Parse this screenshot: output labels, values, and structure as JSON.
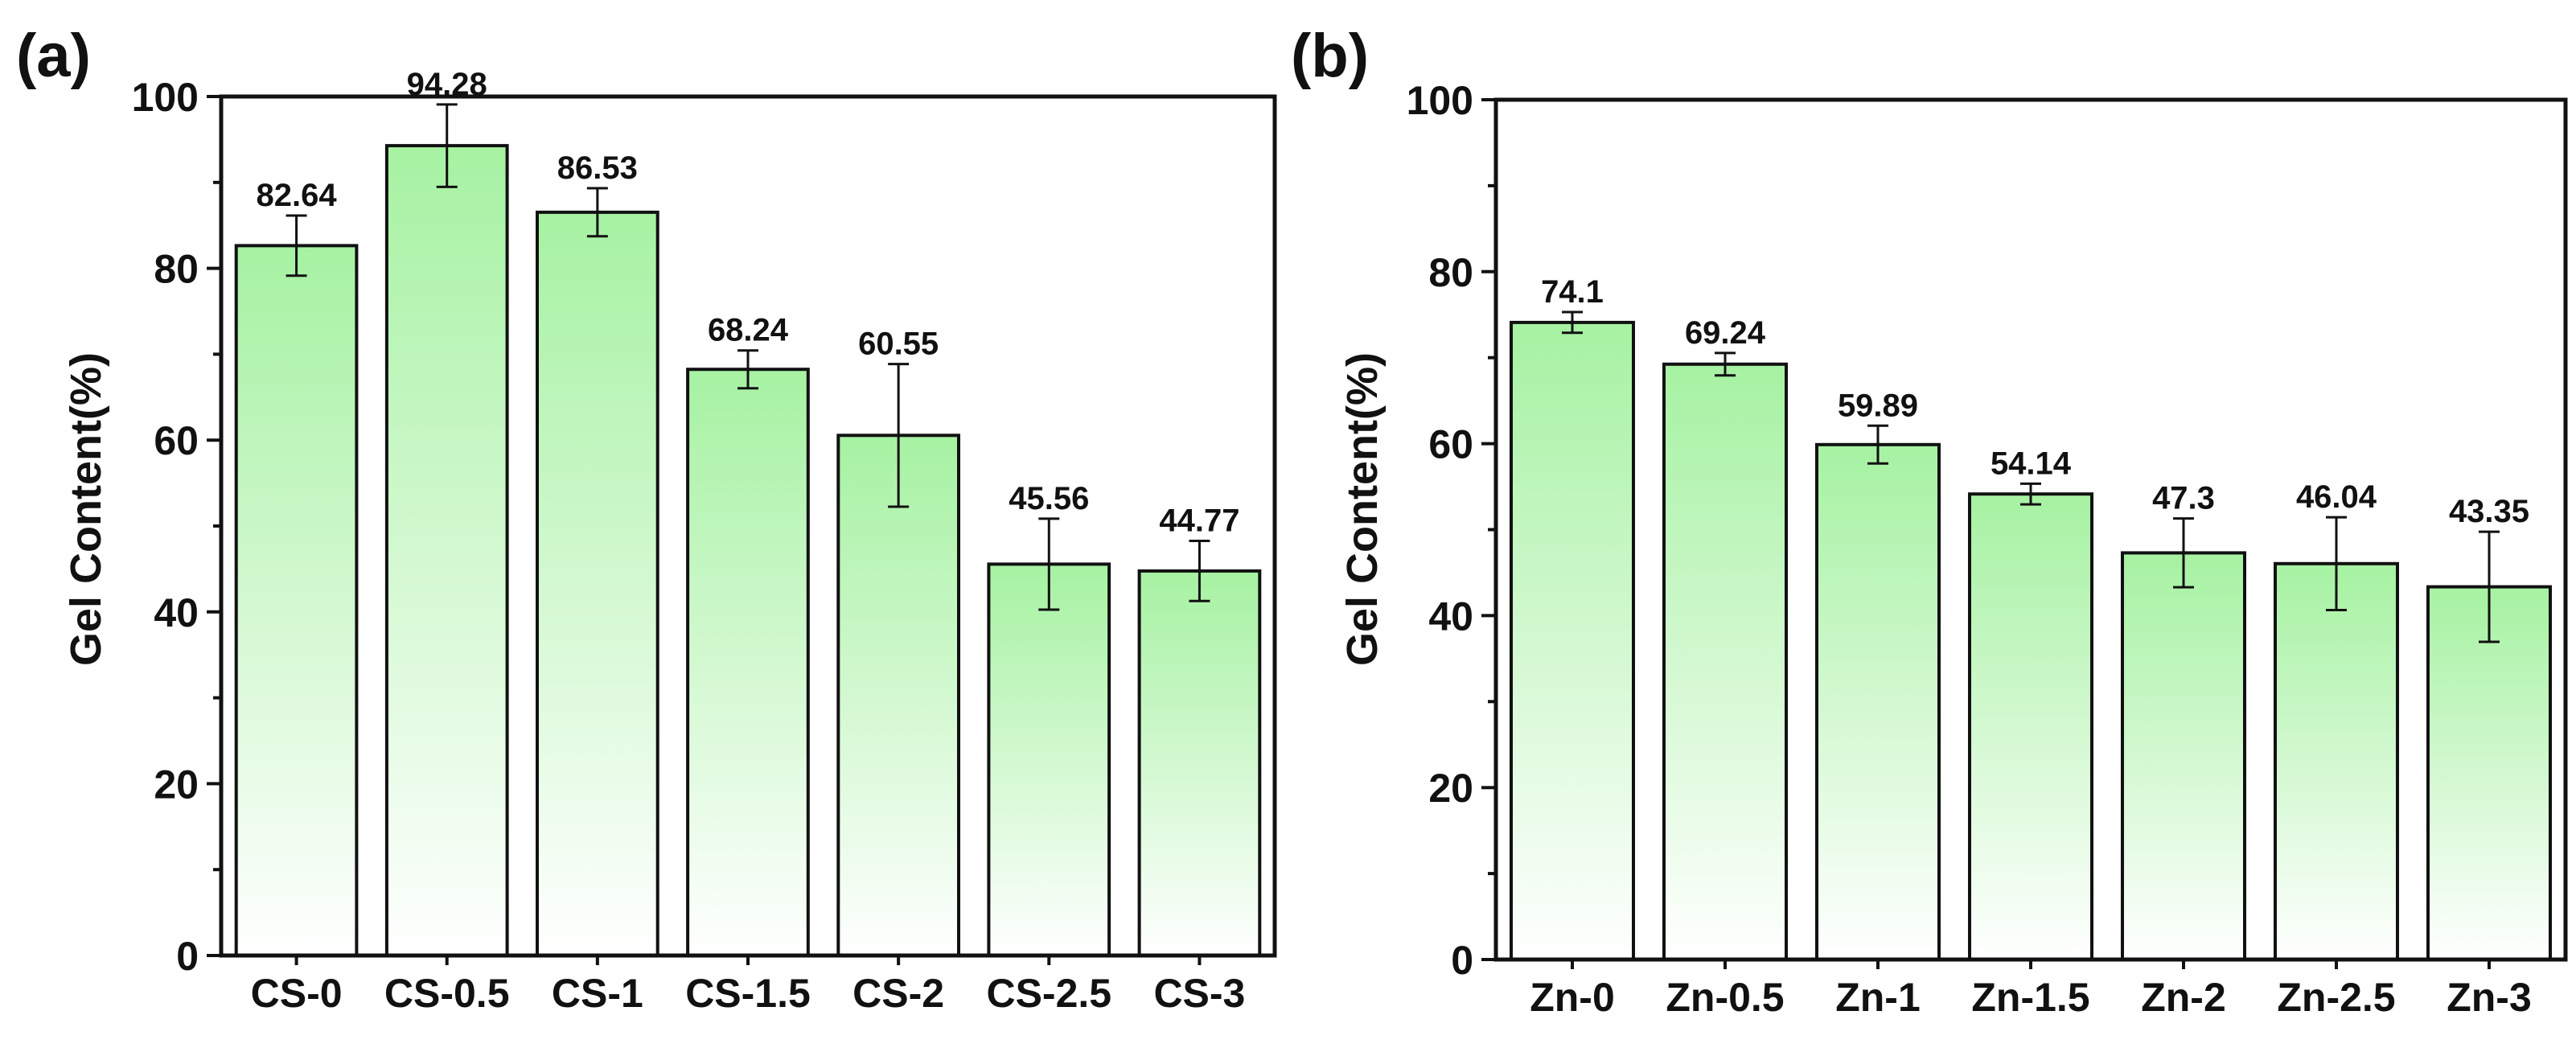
{
  "figure": {
    "bar_color_top": "#a6f2a2",
    "bar_color_bottom": "#ffffff",
    "bar_stroke": "#111111"
  },
  "chart_data": [
    {
      "type": "bar",
      "panel_label": "(a)",
      "title": "",
      "xlabel": "",
      "ylabel": "Gel Content(%)",
      "ylim": [
        0,
        100
      ],
      "yticks": [
        0,
        20,
        40,
        60,
        80,
        100
      ],
      "categories": [
        "CS-0",
        "CS-0.5",
        "CS-1",
        "CS-1.5",
        "CS-2",
        "CS-2.5",
        "CS-3"
      ],
      "values": [
        82.64,
        94.28,
        86.53,
        68.24,
        60.55,
        45.56,
        44.77
      ],
      "value_labels": [
        "82.64",
        "94.28",
        "86.53",
        "68.24",
        "60.55",
        "45.56",
        "44.77"
      ],
      "errors": [
        3.5,
        4.8,
        2.8,
        2.2,
        8.3,
        5.3,
        3.5
      ]
    },
    {
      "type": "bar",
      "panel_label": "(b)",
      "title": "",
      "xlabel": "",
      "ylabel": "Gel Content(%)",
      "ylim": [
        0,
        100
      ],
      "yticks": [
        0,
        20,
        40,
        60,
        80,
        100
      ],
      "categories": [
        "Zn-0",
        "Zn-0.5",
        "Zn-1",
        "Zn-1.5",
        "Zn-2",
        "Zn-2.5",
        "Zn-3"
      ],
      "values": [
        74.1,
        69.24,
        59.89,
        54.14,
        47.3,
        46.04,
        43.35
      ],
      "value_labels": [
        "74.1",
        "69.24",
        "59.89",
        "54.14",
        "47.3",
        "46.04",
        "43.35"
      ],
      "errors": [
        1.2,
        1.3,
        2.2,
        1.2,
        4.0,
        5.4,
        6.4
      ]
    }
  ]
}
